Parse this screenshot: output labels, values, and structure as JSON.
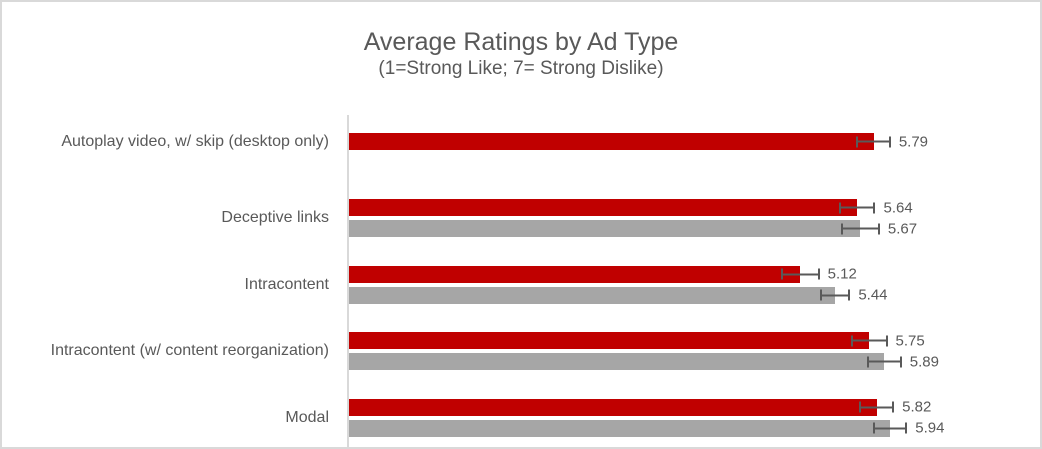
{
  "window": {
    "background": "#FFFFFF",
    "border_color": "#D9D9D9"
  },
  "chart_data": {
    "type": "bar",
    "orientation": "horizontal",
    "title": "Average Ratings by Ad Type",
    "subtitle": "(1=Strong Like; 7= Strong Dislike)",
    "axis": {
      "min": 1,
      "max": 7
    },
    "gridlines": false,
    "legend_position": "none",
    "value_label_decimals": 2,
    "text_color": "#595959",
    "axis_line_color": "#D9D9D9",
    "error_bar_color": "#595959",
    "categories": [
      "Autoplay video, w/ skip (desktop only)",
      "Deceptive links",
      "Intracontent",
      "Intracontent (w/ content reorganization)",
      "Modal"
    ],
    "series": [
      {
        "key": "red",
        "color": "#C00000",
        "values": [
          5.79,
          5.64,
          5.12,
          5.75,
          5.82
        ],
        "errors": [
          0.14,
          0.15,
          0.16,
          0.15,
          0.14
        ]
      },
      {
        "key": "gray",
        "color": "#A6A6A6",
        "values": [
          null,
          5.67,
          5.44,
          5.89,
          5.94
        ],
        "errors": [
          null,
          0.16,
          0.12,
          0.14,
          0.14
        ]
      }
    ]
  }
}
